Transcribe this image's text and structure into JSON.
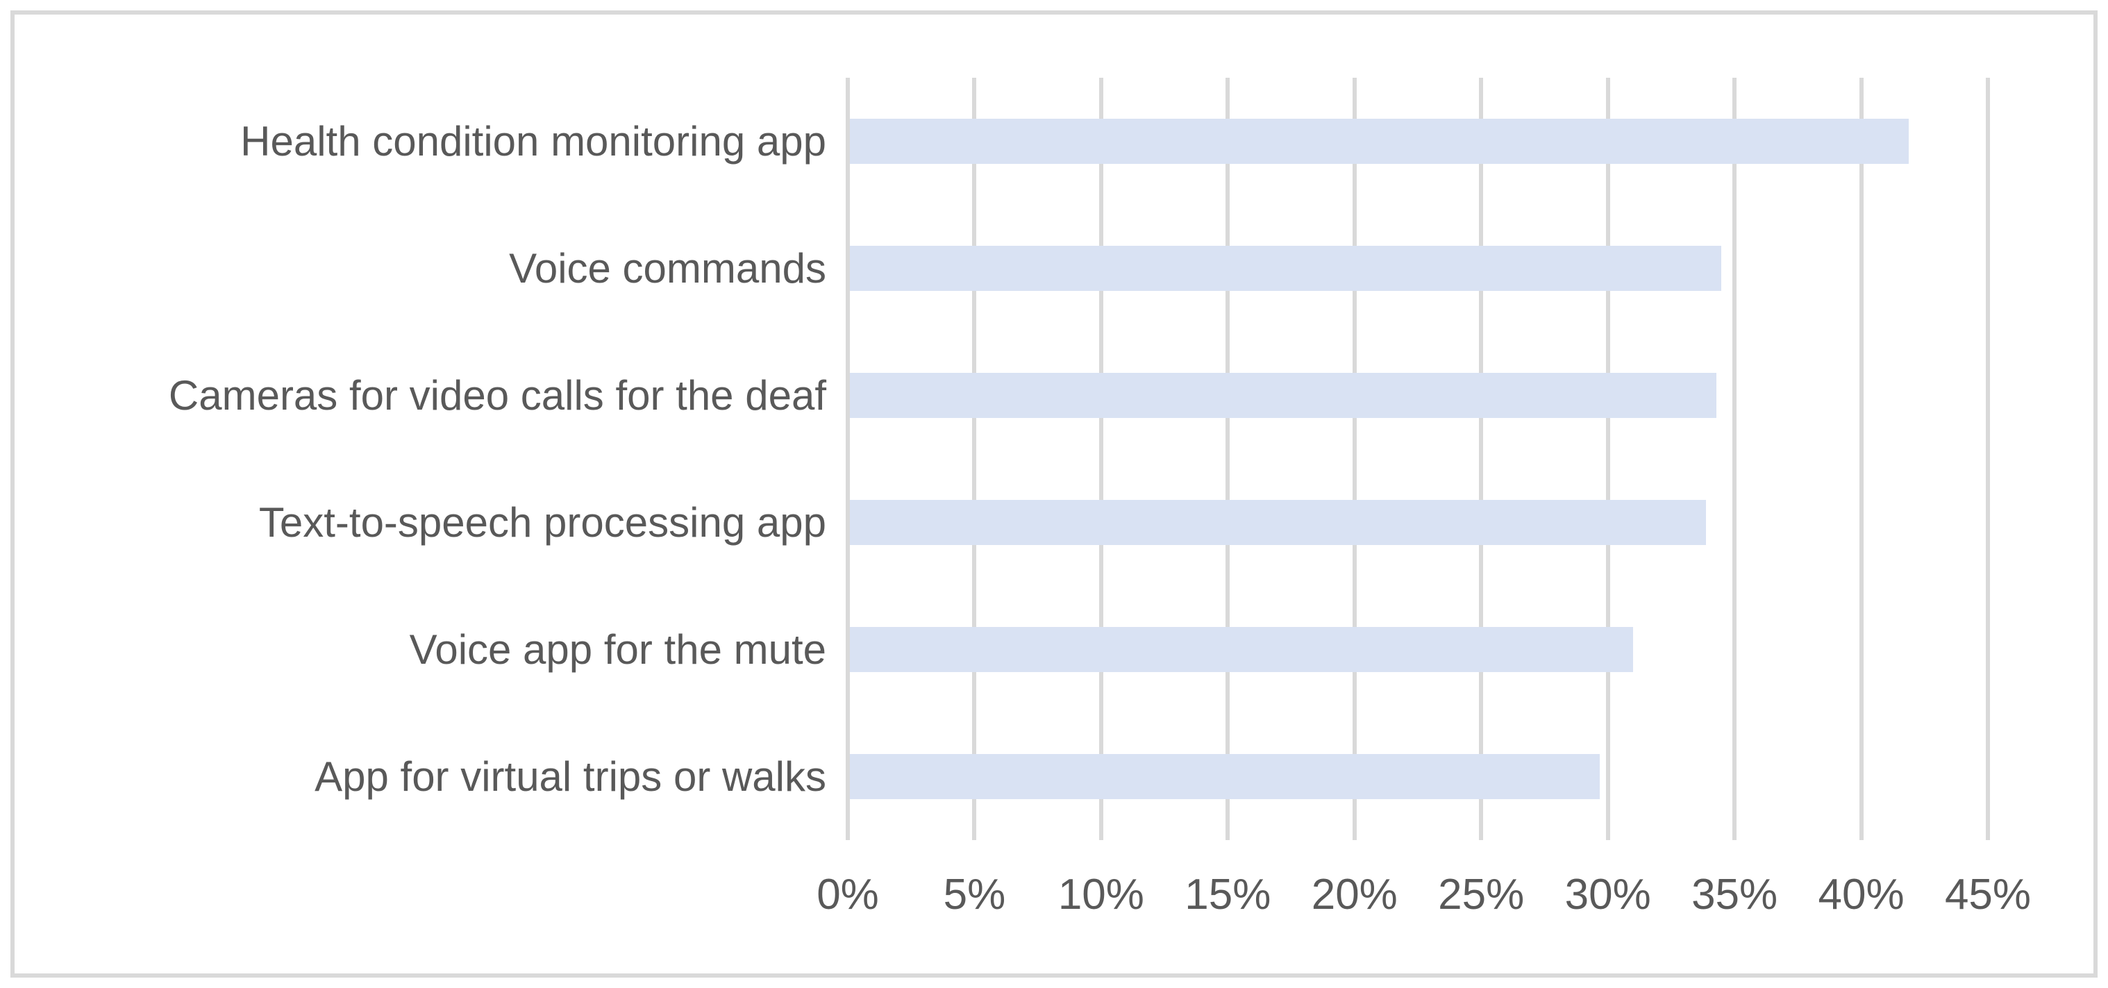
{
  "chart_data": {
    "type": "bar",
    "orientation": "horizontal",
    "title": "",
    "xlabel": "",
    "ylabel": "",
    "categories": [
      "Health condition monitoring app",
      "Voice commands",
      "Cameras for video calls for the deaf",
      "Text-to-speech processing app",
      "Voice app for the mute",
      "App for virtual trips or walks"
    ],
    "values": [
      41.8,
      34.4,
      34.2,
      33.8,
      30.9,
      29.6
    ],
    "unit": "%",
    "x_ticks": [
      "0%",
      "5%",
      "10%",
      "15%",
      "20%",
      "25%",
      "30%",
      "35%",
      "40%",
      "45%"
    ],
    "xlim": [
      0,
      45
    ],
    "tick_step": 5,
    "grid": "vertical-only",
    "legend": "none",
    "colors": {
      "bar_fill": "#d9e2f3",
      "gridline": "#d9d9d9",
      "frame_border": "#d9d9d9",
      "text": "#595959",
      "background": "#ffffff"
    }
  }
}
